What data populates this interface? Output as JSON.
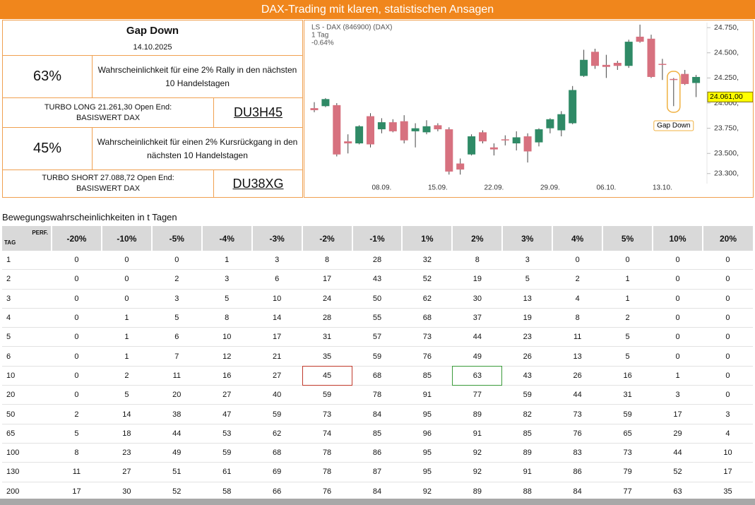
{
  "header": {
    "title": "DAX-Trading mit klaren, statistischen Ansagen"
  },
  "signal": {
    "title": "Gap Down",
    "date": "14.10.2025"
  },
  "long": {
    "probability": "63%",
    "description": "Wahrscheinlichkeit für eine 2% Rally in den nächsten 10 Handelstagen",
    "product": "TURBO LONG 21.261,30 Open End:",
    "underlying": "BASISWERT DAX",
    "code": "DU3H45"
  },
  "short": {
    "probability": "45%",
    "description": "Wahrscheinlichkeit für einen 2% Kursrückgang in den nächsten 10 Handelstagen",
    "product": "TURBO SHORT 27.088,72 Open End:",
    "underlying": "BASISWERT DAX",
    "code": "DU38XG"
  },
  "chart_data": {
    "type": "candlestick",
    "title": "LS - DAX (846900) (DAX)",
    "subtitle": "1 Tag",
    "change": "-0.64%",
    "categories": [
      null,
      null,
      null,
      null,
      null,
      null,
      "08.09.",
      null,
      null,
      null,
      null,
      "15.09.",
      null,
      null,
      null,
      null,
      "22.09.",
      null,
      null,
      null,
      null,
      "29.09.",
      null,
      null,
      null,
      null,
      "06.10.",
      null,
      null,
      null,
      null,
      "13.10.",
      null,
      null,
      null
    ],
    "open": [
      23950,
      23970,
      23980,
      23620,
      23600,
      23870,
      23740,
      23810,
      23820,
      23720,
      23710,
      23780,
      23740,
      23400,
      23490,
      23710,
      23560,
      23640,
      23600,
      23670,
      23610,
      23750,
      23730,
      23800,
      24270,
      24510,
      24380,
      24400,
      24370,
      24660,
      24640,
      24390,
      24240,
      24290,
      24200
    ],
    "high": [
      24010,
      24050,
      24000,
      23690,
      23780,
      23900,
      23850,
      23840,
      23880,
      23800,
      23830,
      23800,
      23760,
      23450,
      23690,
      23730,
      23600,
      23680,
      23720,
      23700,
      23750,
      23850,
      23920,
      24170,
      24530,
      24540,
      24480,
      24420,
      24630,
      24780,
      24680,
      24440,
      24250,
      24330,
      24280
    ],
    "low": [
      23910,
      23960,
      23470,
      23500,
      23590,
      23560,
      23700,
      23710,
      23600,
      23560,
      23690,
      23720,
      23290,
      23290,
      23480,
      23600,
      23480,
      23580,
      23530,
      23410,
      23570,
      23700,
      23670,
      23790,
      24260,
      24340,
      24250,
      24330,
      24350,
      24600,
      24250,
      24230,
      23970,
      24180,
      24060
    ],
    "close": [
      23930,
      24040,
      23490,
      23600,
      23770,
      23590,
      23810,
      23720,
      23630,
      23750,
      23770,
      23740,
      23320,
      23340,
      23670,
      23620,
      23540,
      23630,
      23660,
      23520,
      23740,
      23840,
      23890,
      24130,
      24430,
      24370,
      24360,
      24370,
      24610,
      24610,
      24260,
      24380,
      24230,
      24190,
      24260
    ],
    "up_color": "#2f8a66",
    "down_color": "#d7717f",
    "ylim": [
      23200,
      24800
    ],
    "yticks": [
      {
        "value": 24750,
        "label": "24.750,"
      },
      {
        "value": 24500,
        "label": "24.500,"
      },
      {
        "value": 24250,
        "label": "24.250,"
      },
      {
        "value": 24000,
        "label": "24.000,"
      },
      {
        "value": 23750,
        "label": "23.750,"
      },
      {
        "value": 23500,
        "label": "23.500,"
      },
      {
        "value": 23300,
        "label": "23.300,"
      }
    ],
    "last_price": {
      "value": 24061,
      "label": "24.061,00"
    },
    "annotation": "Gap Down"
  },
  "table": {
    "title": "Bewegungswahrscheinlichkeiten in t Tagen",
    "corner_top": "PERF.",
    "corner_bottom": "TAG",
    "columns": [
      "-20%",
      "-10%",
      "-5%",
      "-4%",
      "-3%",
      "-2%",
      "-1%",
      "1%",
      "2%",
      "3%",
      "4%",
      "5%",
      "10%",
      "20%"
    ],
    "rows": [
      [
        1,
        0,
        0,
        0,
        1,
        3,
        8,
        28,
        32,
        8,
        3,
        0,
        0,
        0,
        0
      ],
      [
        2,
        0,
        0,
        2,
        3,
        6,
        17,
        43,
        52,
        19,
        5,
        2,
        1,
        0,
        0
      ],
      [
        3,
        0,
        0,
        3,
        5,
        10,
        24,
        50,
        62,
        30,
        13,
        4,
        1,
        0,
        0
      ],
      [
        4,
        0,
        1,
        5,
        8,
        14,
        28,
        55,
        68,
        37,
        19,
        8,
        2,
        0,
        0
      ],
      [
        5,
        0,
        1,
        6,
        10,
        17,
        31,
        57,
        73,
        44,
        23,
        11,
        5,
        0,
        0
      ],
      [
        6,
        0,
        1,
        7,
        12,
        21,
        35,
        59,
        76,
        49,
        26,
        13,
        5,
        0,
        0
      ],
      [
        10,
        0,
        2,
        11,
        16,
        27,
        45,
        68,
        85,
        63,
        43,
        26,
        16,
        1,
        0
      ],
      [
        20,
        0,
        5,
        20,
        27,
        40,
        59,
        78,
        91,
        77,
        59,
        44,
        31,
        3,
        0
      ],
      [
        50,
        2,
        14,
        38,
        47,
        59,
        73,
        84,
        95,
        89,
        82,
        73,
        59,
        17,
        3
      ],
      [
        65,
        5,
        18,
        44,
        53,
        62,
        74,
        85,
        96,
        91,
        85,
        76,
        65,
        29,
        4
      ],
      [
        100,
        8,
        23,
        49,
        59,
        68,
        78,
        86,
        95,
        92,
        89,
        83,
        73,
        44,
        10
      ],
      [
        130,
        11,
        27,
        51,
        61,
        69,
        78,
        87,
        95,
        92,
        91,
        86,
        79,
        52,
        17
      ],
      [
        200,
        17,
        30,
        52,
        58,
        66,
        76,
        84,
        92,
        89,
        88,
        84,
        77,
        63,
        35
      ]
    ]
  }
}
